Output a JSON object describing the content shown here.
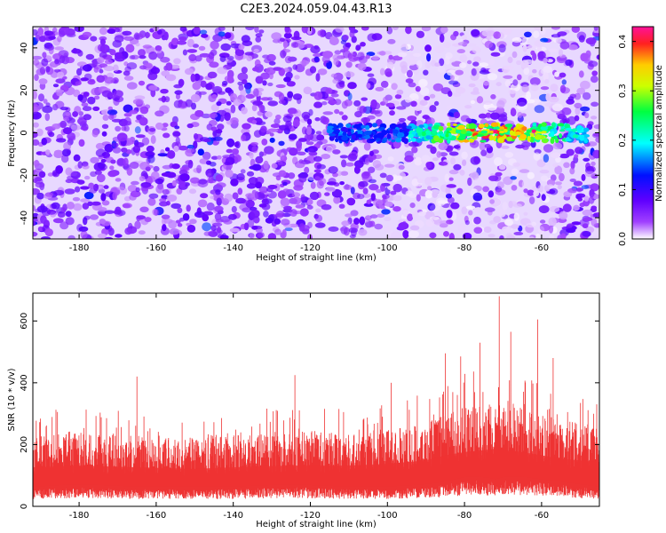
{
  "title": "C2E3.2024.059.04.43.R13",
  "chart_data": [
    {
      "type": "heatmap",
      "xlabel": "Height of straight line (km)",
      "ylabel": "Frequency (Hz)",
      "xlim": [
        -192,
        -45
      ],
      "ylim": [
        -50,
        50
      ],
      "x_ticks": [
        -180,
        -160,
        -140,
        -120,
        -100,
        -80,
        -60
      ],
      "y_ticks": [
        -40,
        -20,
        0,
        20,
        40
      ],
      "colorbar": {
        "label": "Normalized spectral amplitude",
        "range": [
          0,
          0.43
        ],
        "ticks": [
          0.0,
          0.1,
          0.2,
          0.3,
          0.4
        ],
        "colors": [
          "#ffffff",
          "#8c00ff",
          "#0000ff",
          "#00ffff",
          "#00ff00",
          "#ffff00",
          "#ff0000",
          "#ff00aa"
        ]
      },
      "features": {
        "background_level": 0.05,
        "background_peak": 0.12,
        "signal_band_center_hz": 0,
        "signal_band_halfwidth_hz": 4,
        "signal_start_km": -115,
        "signal_peak_km": -72,
        "signal_peak_value": 0.42
      },
      "grid": false
    },
    {
      "type": "area",
      "xlabel": "Height of straight line (km)",
      "ylabel": "SNR (10 * v/v)",
      "xlim": [
        -192,
        -45
      ],
      "ylim": [
        0,
        690
      ],
      "x_ticks": [
        -180,
        -160,
        -140,
        -120,
        -100,
        -80,
        -60
      ],
      "y_ticks": [
        0,
        200,
        400,
        600
      ],
      "color": "#ee3333",
      "envelope": {
        "x": [
          -192,
          -180,
          -165,
          -150,
          -140,
          -125,
          -110,
          -100,
          -90,
          -85,
          -80,
          -75,
          -72,
          -70,
          -65,
          -60,
          -55,
          -45
        ],
        "low": [
          40,
          45,
          40,
          40,
          40,
          45,
          40,
          40,
          45,
          50,
          60,
          60,
          55,
          60,
          60,
          55,
          50,
          40
        ],
        "typical_high": [
          230,
          240,
          230,
          220,
          230,
          240,
          240,
          250,
          270,
          300,
          320,
          330,
          340,
          330,
          320,
          300,
          280,
          260
        ],
        "spikes": [
          {
            "x": -165,
            "y": 420
          },
          {
            "x": -124,
            "y": 425
          },
          {
            "x": -99,
            "y": 400
          },
          {
            "x": -85,
            "y": 495
          },
          {
            "x": -81,
            "y": 485
          },
          {
            "x": -76,
            "y": 530
          },
          {
            "x": -71,
            "y": 680
          },
          {
            "x": -68,
            "y": 565
          },
          {
            "x": -61,
            "y": 605
          },
          {
            "x": -57,
            "y": 480
          }
        ]
      },
      "grid": false
    }
  ]
}
